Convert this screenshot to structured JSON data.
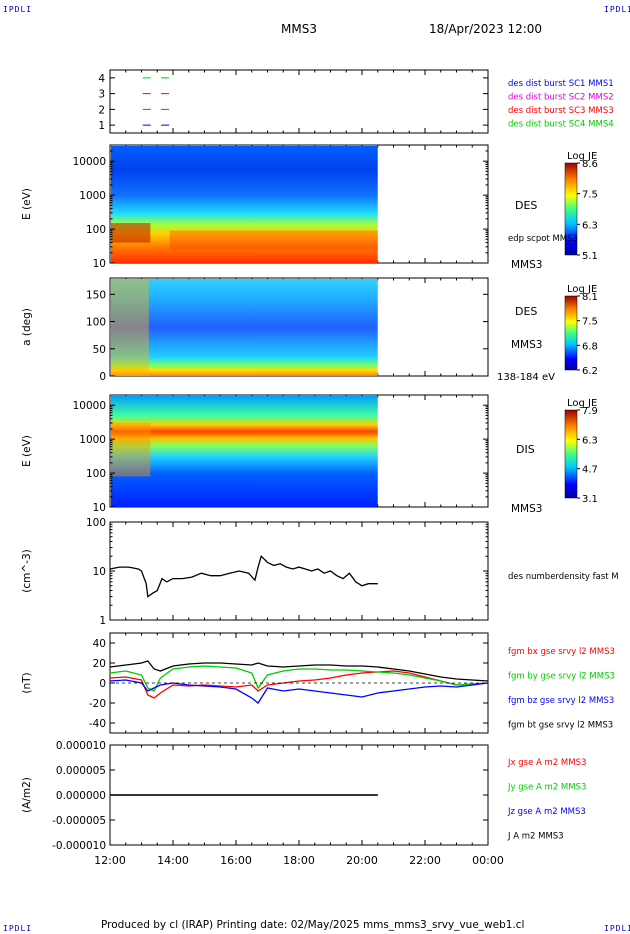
{
  "corners": {
    "tl": "IPDLI",
    "tr": "IPDLI",
    "bl": "IPDLI",
    "br": "IPDLI"
  },
  "header": {
    "spacecraft": "MMS3",
    "datetime": "18/Apr/2023 12:00"
  },
  "footer": "Produced by cl (IRAP)   Printing date: 02/May/2025   mms_mms3_srvy_vue_web1.cl",
  "colors": {
    "blue": "#0000ff",
    "magenta": "#e000e0",
    "red": "#ff0000",
    "green": "#00cc00",
    "black": "#000000"
  },
  "chart_data": [
    {
      "type": "scatter",
      "panel": "burst-availability",
      "yticks": [
        "1",
        "2",
        "3",
        "4"
      ],
      "ylim": [
        0.5,
        4.5
      ],
      "series": [
        {
          "name": "des dist burst SC1 MMS1",
          "color": "#0000ff",
          "y": 1,
          "x": [
            "13:10",
            "13:45"
          ]
        },
        {
          "name": "des dist burst SC2 MMS2",
          "color": "#e000e0",
          "y": 2,
          "x": [
            "13:10",
            "13:45"
          ]
        },
        {
          "name": "des dist burst SC3 MMS3",
          "color": "#ff0000",
          "y": 3,
          "x": [
            "13:10",
            "13:45"
          ]
        },
        {
          "name": "des dist burst SC4 MMS4",
          "color": "#00cc00",
          "y": 4,
          "x": [
            "13:10",
            "13:45"
          ]
        }
      ]
    },
    {
      "type": "heatmap",
      "panel": "des-energy",
      "ylabel": "E (eV)",
      "yscale": "log",
      "ylim": [
        10,
        30000
      ],
      "yticks": [
        "10",
        "100",
        "1000",
        "10000"
      ],
      "data_end": "20:30",
      "colorbar": {
        "title": "Log JE",
        "ticks": [
          "8.6",
          "7.5",
          "6.3",
          "5.1"
        ],
        "range": [
          5.1,
          8.6
        ]
      },
      "right_labels": [
        "DES",
        "edp scpot MMS3",
        "MMS3"
      ]
    },
    {
      "type": "heatmap",
      "panel": "des-pitch",
      "ylabel": "a (deg)",
      "ylim": [
        0,
        180
      ],
      "yticks": [
        "0",
        "50",
        "100",
        "150"
      ],
      "data_end": "20:30",
      "colorbar": {
        "title": "Log JE",
        "ticks": [
          "8.1",
          "7.5",
          "6.8",
          "6.2"
        ],
        "range": [
          6.2,
          8.1
        ]
      },
      "right_labels": [
        "DES",
        "MMS3",
        "138-184 eV"
      ]
    },
    {
      "type": "heatmap",
      "panel": "dis-energy",
      "ylabel": "E (eV)",
      "yscale": "log",
      "ylim": [
        10,
        20000
      ],
      "yticks": [
        "10",
        "100",
        "1000",
        "10000"
      ],
      "data_end": "20:30",
      "colorbar": {
        "title": "Log JE",
        "ticks": [
          "7.9",
          "6.3",
          "4.7",
          "3.1"
        ],
        "range": [
          3.1,
          7.9
        ]
      },
      "right_labels": [
        "DIS",
        "MMS3"
      ]
    },
    {
      "type": "line",
      "panel": "density",
      "ylabel": "(cm^-3)",
      "yscale": "log",
      "ylim": [
        1,
        100
      ],
      "yticks": [
        "1",
        "10",
        "100"
      ],
      "series": [
        {
          "name": "des numberdensity fast M",
          "color": "#000000",
          "x": [
            0.0,
            0.3,
            0.6,
            0.9,
            1.0,
            1.15,
            1.2,
            1.35,
            1.5,
            1.65,
            1.8,
            2.0,
            2.3,
            2.6,
            2.9,
            3.2,
            3.5,
            3.8,
            4.1,
            4.4,
            4.6,
            4.7,
            4.8,
            5.0,
            5.2,
            5.4,
            5.6,
            5.8,
            6.0,
            6.2,
            6.4,
            6.6,
            6.8,
            7.0,
            7.2,
            7.4,
            7.6,
            7.8,
            8.0,
            8.2,
            8.5
          ],
          "y": [
            11,
            12,
            12,
            11,
            10,
            5.5,
            3,
            3.5,
            4,
            7,
            6,
            7,
            7,
            7.5,
            9,
            8,
            8,
            9,
            10,
            9,
            6.5,
            12,
            20,
            15,
            13,
            14,
            12,
            11,
            12,
            11,
            10,
            11,
            9,
            10,
            8,
            7,
            9,
            6,
            5,
            5.5,
            5.5
          ]
        }
      ]
    },
    {
      "type": "line",
      "panel": "magnetic-field",
      "ylabel": "(nT)",
      "ylim": [
        -50,
        50
      ],
      "yticks": [
        "-40",
        "-20",
        "0",
        "20",
        "40"
      ],
      "series": [
        {
          "name": "fgm bx gse srvy l2 MMS3",
          "color": "#ff0000",
          "x": [
            0,
            0.5,
            1.0,
            1.2,
            1.4,
            1.6,
            2.0,
            2.5,
            3.0,
            3.5,
            4.0,
            4.5,
            4.7,
            5.0,
            5.5,
            6.0,
            6.5,
            7.0,
            7.5,
            8.0,
            8.5,
            9.0,
            9.5,
            10.0,
            10.5,
            11.0,
            11.5,
            12.0
          ],
          "y": [
            5,
            6,
            3,
            -12,
            -15,
            -10,
            -2,
            -3,
            -2,
            -3,
            -4,
            -2,
            -8,
            -2,
            0,
            2,
            3,
            5,
            8,
            10,
            11,
            12,
            10,
            6,
            2,
            -2,
            -1,
            0
          ]
        },
        {
          "name": "fgm by gse srvy l2 MMS3",
          "color": "#00cc00",
          "x": [
            0,
            0.5,
            1.0,
            1.2,
            1.4,
            1.6,
            2.0,
            2.5,
            3.0,
            3.5,
            4.0,
            4.5,
            4.7,
            5.0,
            5.5,
            6.0,
            6.5,
            7.0,
            7.5,
            8.0,
            8.5,
            9.0,
            9.5,
            10.0,
            10.5,
            11.0,
            11.5,
            12.0
          ],
          "y": [
            10,
            12,
            8,
            -5,
            -8,
            5,
            14,
            16,
            17,
            16,
            15,
            10,
            -5,
            8,
            12,
            14,
            14,
            13,
            13,
            12,
            11,
            10,
            8,
            5,
            2,
            -2,
            -1,
            0
          ]
        },
        {
          "name": "fgm bz gse srvy l2 MMS3",
          "color": "#0000ff",
          "x": [
            0,
            0.5,
            1.0,
            1.2,
            1.4,
            1.6,
            2.0,
            2.5,
            3.0,
            3.5,
            4.0,
            4.5,
            4.7,
            5.0,
            5.5,
            6.0,
            6.5,
            7.0,
            7.5,
            8.0,
            8.5,
            9.0,
            9.5,
            10.0,
            10.5,
            11.0,
            11.5,
            12.0
          ],
          "y": [
            2,
            3,
            0,
            -8,
            -5,
            -2,
            0,
            -2,
            -3,
            -4,
            -6,
            -15,
            -20,
            -5,
            -8,
            -6,
            -8,
            -10,
            -12,
            -14,
            -10,
            -8,
            -6,
            -4,
            -3,
            -4,
            -2,
            0
          ]
        },
        {
          "name": "fgm bt gse srvy l2 MMS3",
          "color": "#000000",
          "x": [
            0,
            0.5,
            1.0,
            1.2,
            1.4,
            1.6,
            2.0,
            2.5,
            3.0,
            3.5,
            4.0,
            4.5,
            4.7,
            5.0,
            5.5,
            6.0,
            6.5,
            7.0,
            7.5,
            8.0,
            8.5,
            9.0,
            9.5,
            10.0,
            10.5,
            11.0,
            11.5,
            12.0
          ],
          "y": [
            16,
            18,
            20,
            22,
            14,
            12,
            17,
            19,
            20,
            20,
            19,
            18,
            20,
            17,
            16,
            17,
            18,
            18,
            17,
            17,
            16,
            14,
            12,
            9,
            6,
            4,
            3,
            2
          ]
        }
      ]
    },
    {
      "type": "line",
      "panel": "current-density",
      "ylabel": "(A/m2)",
      "ylim": [
        -1e-05,
        1e-05
      ],
      "yticks": [
        "-0.000010",
        "-0.000005",
        "0.000000",
        "0.000005",
        "0.000010"
      ],
      "series": [
        {
          "name": "Jx gse A m2 MMS3",
          "color": "#ff0000",
          "x": [
            0,
            8.5
          ],
          "y": [
            0,
            0
          ]
        },
        {
          "name": "Jy gse A m2 MMS3",
          "color": "#00cc00",
          "x": [
            0,
            8.5
          ],
          "y": [
            0,
            0
          ]
        },
        {
          "name": "Jz gse A m2 MMS3",
          "color": "#0000ff",
          "x": [
            0,
            8.5
          ],
          "y": [
            0,
            0
          ]
        },
        {
          "name": "J A m2 MMS3",
          "color": "#000000",
          "x": [
            0,
            8.5
          ],
          "y": [
            0,
            0
          ]
        }
      ]
    }
  ],
  "xaxis": {
    "ticks": [
      "12:00",
      "14:00",
      "16:00",
      "18:00",
      "20:00",
      "22:00",
      "00:00"
    ],
    "range_hours": [
      0,
      12
    ]
  }
}
